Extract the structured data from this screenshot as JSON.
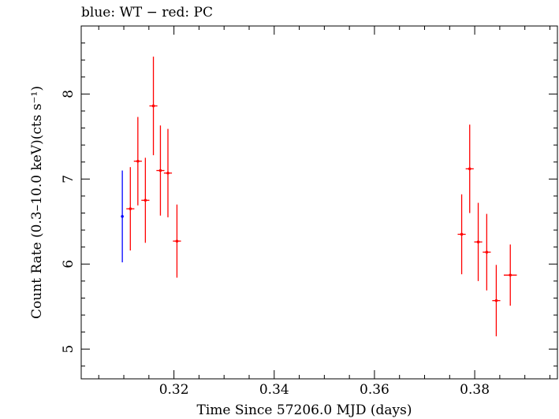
{
  "chart_data": {
    "type": "scatter",
    "title": "blue: WT − red: PC",
    "xlabel": "Time Since 57206.0 MJD (days)",
    "ylabel": "Count Rate (0.3–10.0 keV)(cts s⁻¹)",
    "xlim": [
      0.3015,
      0.3965
    ],
    "ylim": [
      4.65,
      8.8
    ],
    "xticks": [
      {
        "value": 0.32,
        "label": "0.32"
      },
      {
        "value": 0.34,
        "label": "0.34"
      },
      {
        "value": 0.36,
        "label": "0.36"
      },
      {
        "value": 0.38,
        "label": "0.38"
      }
    ],
    "yticks": [
      {
        "value": 5,
        "label": "5"
      },
      {
        "value": 6,
        "label": "6"
      },
      {
        "value": 7,
        "label": "7"
      },
      {
        "value": 8,
        "label": "8"
      }
    ],
    "series": [
      {
        "name": "WT",
        "color": "#0000ff",
        "points": [
          {
            "x": 0.3097,
            "xerr": 0.0002,
            "y": 6.56,
            "yerr": 0.54
          }
        ]
      },
      {
        "name": "PC",
        "color": "#ff0000",
        "points": [
          {
            "x": 0.3113,
            "xerr": 0.0008,
            "y": 6.65,
            "yerr": 0.49
          },
          {
            "x": 0.3128,
            "xerr": 0.0008,
            "y": 7.21,
            "yerr": 0.52
          },
          {
            "x": 0.3143,
            "xerr": 0.0008,
            "y": 6.75,
            "yerr": 0.5
          },
          {
            "x": 0.3159,
            "xerr": 0.0008,
            "y": 7.86,
            "yerr": 0.58
          },
          {
            "x": 0.3173,
            "xerr": 0.0008,
            "y": 7.1,
            "yerr": 0.53
          },
          {
            "x": 0.3188,
            "xerr": 0.0008,
            "y": 7.07,
            "yerr": 0.52
          },
          {
            "x": 0.3206,
            "xerr": 0.0008,
            "y": 6.27,
            "yerr": 0.43
          },
          {
            "x": 0.3774,
            "xerr": 0.0008,
            "y": 6.35,
            "yerr": 0.47
          },
          {
            "x": 0.379,
            "xerr": 0.0008,
            "y": 7.12,
            "yerr": 0.52
          },
          {
            "x": 0.3807,
            "xerr": 0.0008,
            "y": 6.26,
            "yerr": 0.46
          },
          {
            "x": 0.3824,
            "xerr": 0.0008,
            "y": 6.14,
            "yerr": 0.45
          },
          {
            "x": 0.3843,
            "xerr": 0.0008,
            "y": 5.57,
            "yerr": 0.42
          },
          {
            "x": 0.3871,
            "xerr": 0.0013,
            "y": 5.87,
            "yerr": 0.36
          }
        ]
      }
    ]
  }
}
